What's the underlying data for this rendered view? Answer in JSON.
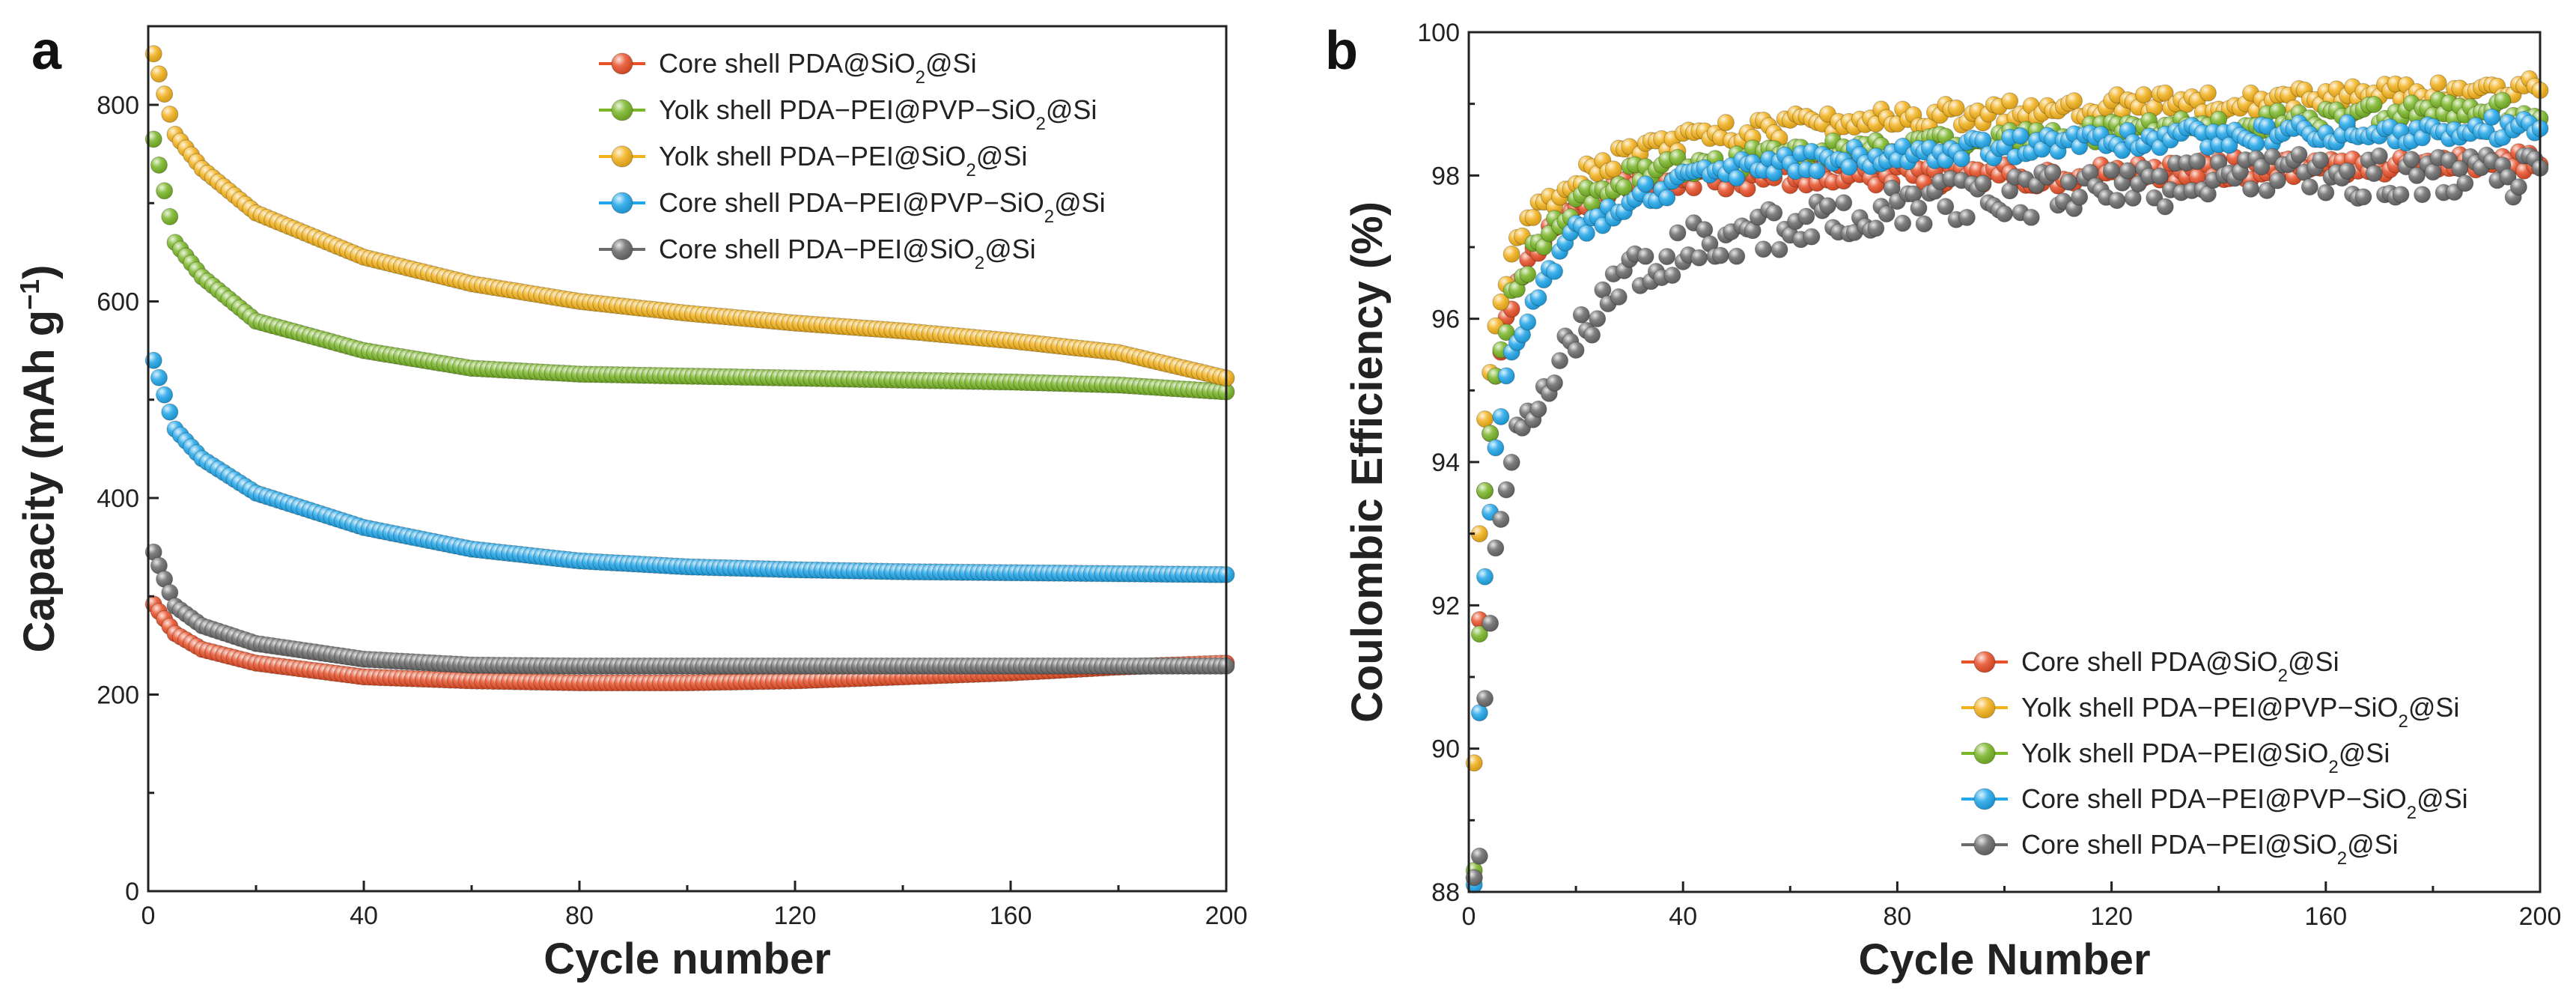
{
  "chart_data": [
    {
      "type": "scatter",
      "panel": "a",
      "xlabel": "Cycle number",
      "ylabel_parts": [
        "Capacity (mAh g",
        "−1",
        ")"
      ],
      "xlim": [
        0,
        200
      ],
      "ylim": [
        0,
        880
      ],
      "xticks": [
        0,
        40,
        80,
        120,
        160,
        200
      ],
      "yticks": [
        0,
        200,
        400,
        600,
        800
      ],
      "legend_position": "top-right",
      "series": [
        {
          "name": "Core shell PDA@SiO2@Si",
          "label_parts": [
            "Core shell PDA@SiO",
            "2",
            "@Si"
          ],
          "color": "#e8512a",
          "x": [
            1,
            5,
            10,
            20,
            40,
            60,
            80,
            100,
            120,
            140,
            160,
            180,
            200
          ],
          "y": [
            292,
            262,
            246,
            232,
            218,
            214,
            212,
            212,
            214,
            218,
            222,
            228,
            232
          ]
        },
        {
          "name": "Yolk shell PDA-PEI@PVP-SiO2@Si",
          "label_parts": [
            "Yolk shell PDA−PEI@PVP−SiO",
            "2",
            "@Si"
          ],
          "color": "#7ab628",
          "x": [
            1,
            5,
            10,
            20,
            40,
            60,
            80,
            100,
            120,
            140,
            160,
            180,
            200
          ],
          "y": [
            765,
            660,
            625,
            580,
            550,
            532,
            526,
            524,
            522,
            520,
            518,
            515,
            508
          ]
        },
        {
          "name": "Yolk shell PDA-PEI@SiO2@Si",
          "label_parts": [
            "Yolk shell PDA−PEI@SiO",
            "2",
            "@Si"
          ],
          "color": "#f3b21c",
          "x": [
            1,
            5,
            10,
            20,
            40,
            60,
            80,
            100,
            120,
            140,
            160,
            180,
            200
          ],
          "y": [
            852,
            770,
            735,
            690,
            645,
            618,
            600,
            588,
            578,
            570,
            560,
            548,
            522
          ]
        },
        {
          "name": "Core shell PDA-PEI@PVP-SiO2@Si",
          "label_parts": [
            "Core shell PDA−PEI@PVP−SiO",
            "2",
            "@Si"
          ],
          "color": "#22a7ea",
          "x": [
            1,
            5,
            10,
            20,
            40,
            60,
            80,
            100,
            120,
            140,
            160,
            180,
            200
          ],
          "y": [
            540,
            470,
            440,
            405,
            370,
            348,
            336,
            330,
            327,
            325,
            324,
            323,
            322
          ]
        },
        {
          "name": "Core shell PDA-PEI@SiO2@Si",
          "label_parts": [
            "Core shell PDA−PEI@SiO",
            "2",
            "@Si"
          ],
          "color": "#6b6b6b",
          "x": [
            1,
            5,
            10,
            20,
            40,
            60,
            80,
            100,
            120,
            140,
            160,
            180,
            200
          ],
          "y": [
            345,
            290,
            270,
            252,
            236,
            230,
            229,
            229,
            229,
            229,
            229,
            229,
            229
          ]
        }
      ]
    },
    {
      "type": "scatter",
      "panel": "b",
      "xlabel": "Cycle Number",
      "ylabel_parts": [
        "Coulombic Efficiency (%)"
      ],
      "xlim": [
        0,
        200
      ],
      "ylim": [
        88,
        100
      ],
      "xticks": [
        0,
        40,
        80,
        120,
        160,
        200
      ],
      "yticks": [
        88,
        90,
        92,
        94,
        96,
        98,
        100
      ],
      "legend_position": "bottom-right",
      "series": [
        {
          "name": "Core shell PDA@SiO2@Si",
          "label_parts": [
            "Core shell PDA@SiO",
            "2",
            "@Si"
          ],
          "color": "#e8512a",
          "x": [
            1,
            2,
            3,
            5,
            8,
            12,
            20,
            30,
            40,
            60,
            80,
            100,
            120,
            140,
            160,
            180,
            200
          ],
          "y": [
            88.2,
            91.8,
            93.6,
            95.2,
            96.2,
            96.9,
            97.6,
            97.9,
            97.9,
            98.0,
            98.0,
            98.0,
            98.0,
            98.1,
            98.1,
            98.2,
            98.2
          ]
        },
        {
          "name": "Yolk shell PDA-PEI@PVP-SiO2@Si",
          "label_parts": [
            "Yolk shell PDA−PEI@PVP−SiO",
            "2",
            "@Si"
          ],
          "color": "#f3b21c",
          "x": [
            1,
            2,
            3,
            5,
            8,
            12,
            20,
            30,
            40,
            60,
            80,
            100,
            120,
            140,
            160,
            180,
            200
          ],
          "y": [
            89.8,
            93.0,
            94.6,
            95.9,
            96.9,
            97.4,
            98.0,
            98.3,
            98.5,
            98.7,
            98.8,
            98.9,
            99.0,
            99.05,
            99.1,
            99.15,
            99.2
          ]
        },
        {
          "name": "Yolk shell PDA-PEI@SiO2@Si",
          "label_parts": [
            "Yolk shell PDA−PEI@SiO",
            "2",
            "@Si"
          ],
          "color": "#7ab628",
          "x": [
            1,
            2,
            3,
            5,
            8,
            12,
            20,
            30,
            40,
            60,
            80,
            100,
            120,
            140,
            160,
            180,
            200
          ],
          "y": [
            88.3,
            91.6,
            93.6,
            95.2,
            96.3,
            96.9,
            97.6,
            98.0,
            98.1,
            98.3,
            98.4,
            98.5,
            98.6,
            98.7,
            98.8,
            98.9,
            98.9
          ]
        },
        {
          "name": "Core shell PDA-PEI@PVP-SiO2@Si",
          "label_parts": [
            "Core shell PDA−PEI@PVP−SiO",
            "2",
            "@Si"
          ],
          "color": "#22a7ea",
          "x": [
            1,
            2,
            3,
            5,
            8,
            12,
            20,
            30,
            40,
            60,
            80,
            100,
            120,
            140,
            160,
            180,
            200
          ],
          "y": [
            88.1,
            90.5,
            92.4,
            94.2,
            95.5,
            96.3,
            97.2,
            97.7,
            97.9,
            98.2,
            98.3,
            98.4,
            98.5,
            98.55,
            98.6,
            98.6,
            98.7
          ]
        },
        {
          "name": "Core shell PDA-PEI@SiO2@Si",
          "label_parts": [
            "Core shell PDA−PEI@SiO",
            "2",
            "@Si"
          ],
          "color": "#6b6b6b",
          "x": [
            1,
            2,
            3,
            5,
            8,
            12,
            20,
            30,
            40,
            60,
            80,
            100,
            120,
            140,
            160,
            180,
            200
          ],
          "y": [
            88.2,
            88.5,
            90.7,
            92.8,
            94.0,
            94.8,
            95.8,
            96.6,
            97.0,
            97.3,
            97.6,
            97.7,
            97.8,
            97.9,
            98.0,
            98.0,
            98.0
          ]
        }
      ]
    }
  ]
}
